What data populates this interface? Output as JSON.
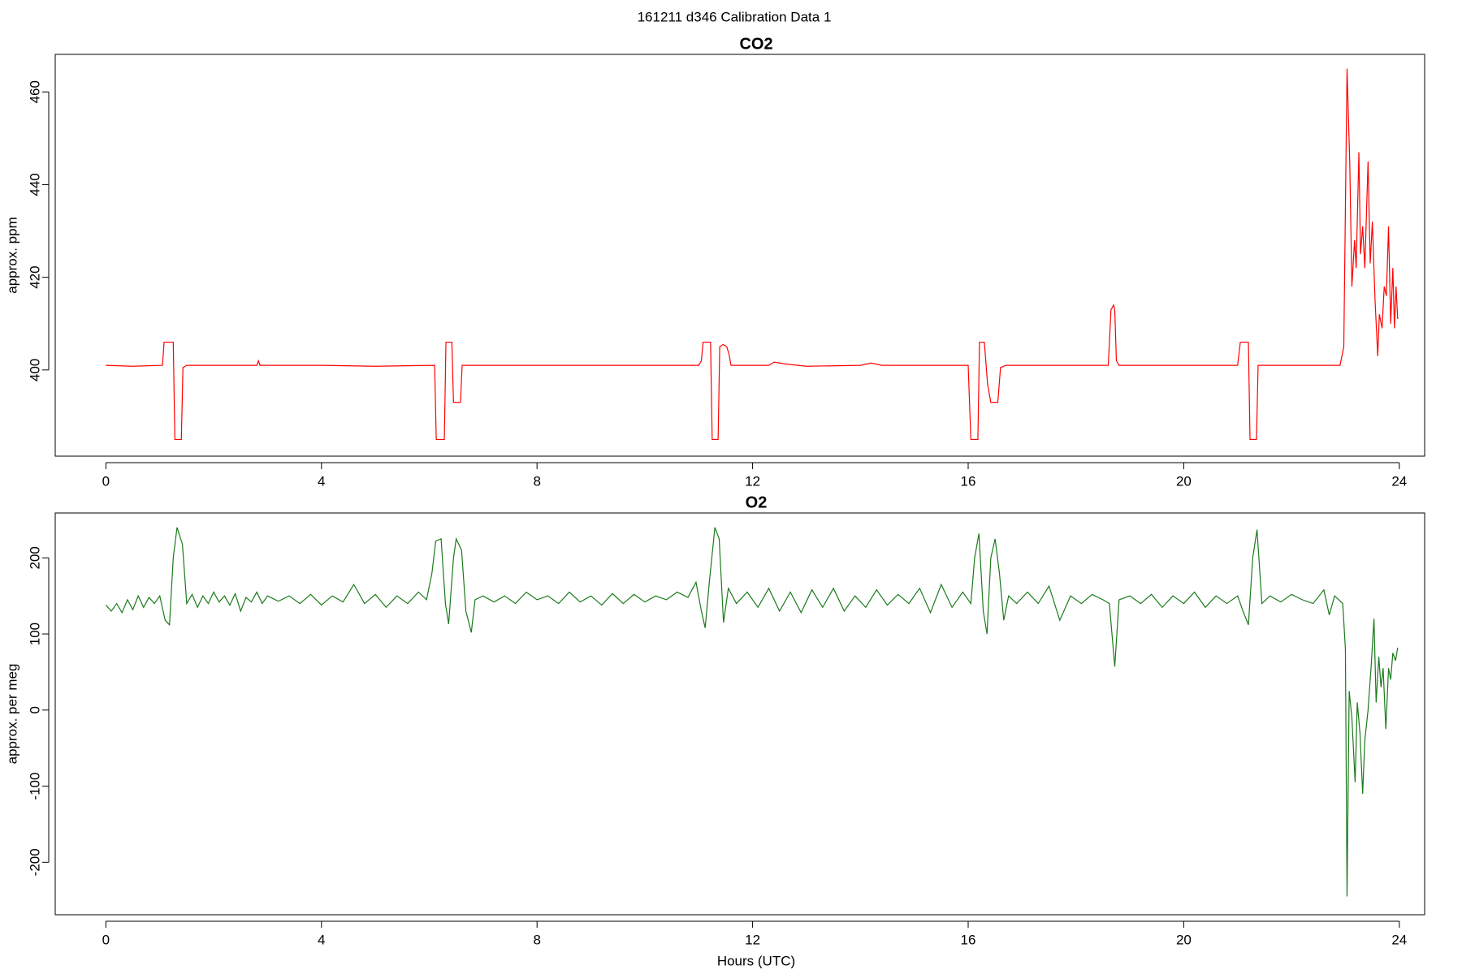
{
  "title": "161211   d346   Calibration Data 1",
  "chart_data": [
    {
      "type": "line",
      "title": "CO2",
      "ylabel": "approx. ppm",
      "color": "#ff0000",
      "x": [
        0.0,
        0.5,
        1.05,
        1.08,
        1.25,
        1.28,
        1.4,
        1.43,
        1.5,
        2.8,
        2.83,
        2.86,
        4,
        5,
        6.1,
        6.13,
        6.28,
        6.31,
        6.42,
        6.45,
        6.58,
        6.61,
        8,
        10,
        11.0,
        11.05,
        11.08,
        11.22,
        11.25,
        11.36,
        11.39,
        11.45,
        11.52,
        11.56,
        11.6,
        12.3,
        12.4,
        12.6,
        13,
        14,
        14.2,
        14.4,
        16.0,
        16.05,
        16.18,
        16.21,
        16.3,
        16.36,
        16.42,
        16.55,
        16.6,
        16.7,
        18.6,
        18.65,
        18.7,
        18.72,
        18.75,
        18.8,
        21.0,
        21.05,
        21.2,
        21.23,
        21.35,
        21.38,
        22.9,
        22.97,
        23.03,
        23.08,
        23.12,
        23.17,
        23.2,
        23.25,
        23.28,
        23.32,
        23.36,
        23.42,
        23.46,
        23.5,
        23.55,
        23.6,
        23.63,
        23.68,
        23.72,
        23.76,
        23.8,
        23.84,
        23.88,
        23.91,
        23.94,
        23.97
      ],
      "values": [
        401,
        400.8,
        401,
        406,
        406,
        385,
        385,
        400.5,
        401,
        401,
        402,
        401,
        401,
        400.8,
        401,
        385,
        385,
        406,
        406,
        393,
        393,
        401,
        401,
        401,
        401,
        402,
        406,
        406,
        385,
        385,
        405,
        405.5,
        405,
        403.5,
        401,
        401,
        401.7,
        401.3,
        400.8,
        401,
        401.5,
        401,
        401,
        385,
        385,
        406,
        406,
        397,
        393,
        393,
        400.5,
        401,
        401,
        413,
        414,
        413,
        402,
        401,
        401,
        406,
        406,
        385,
        385,
        401,
        401,
        405,
        465,
        445,
        418,
        428,
        422,
        447,
        425,
        431,
        422,
        445,
        423,
        432,
        415,
        403,
        412,
        409,
        418,
        416,
        431,
        410,
        422,
        409,
        418,
        411
      ],
      "xlim": [
        -0.94,
        24.47
      ],
      "ylim": [
        381.4,
        468.1
      ],
      "xticks": [
        0,
        4,
        8,
        12,
        16,
        20,
        24
      ],
      "yticks": [
        400,
        420,
        440,
        460
      ]
    },
    {
      "type": "line",
      "title": "O2",
      "ylabel": "approx. per meg",
      "xlabel": "Hours (UTC)",
      "color": "#1b7a1b",
      "x": [
        0,
        0.1,
        0.2,
        0.3,
        0.4,
        0.5,
        0.6,
        0.7,
        0.8,
        0.9,
        1.0,
        1.1,
        1.18,
        1.25,
        1.32,
        1.42,
        1.5,
        1.6,
        1.7,
        1.8,
        1.9,
        2.0,
        2.1,
        2.2,
        2.3,
        2.4,
        2.5,
        2.6,
        2.7,
        2.8,
        2.9,
        3.0,
        3.2,
        3.4,
        3.6,
        3.8,
        4.0,
        4.2,
        4.4,
        4.6,
        4.8,
        5.0,
        5.2,
        5.4,
        5.6,
        5.8,
        5.95,
        6.05,
        6.12,
        6.22,
        6.3,
        6.36,
        6.45,
        6.5,
        6.6,
        6.68,
        6.78,
        6.85,
        7.0,
        7.2,
        7.4,
        7.6,
        7.8,
        8.0,
        8.2,
        8.4,
        8.6,
        8.8,
        9.0,
        9.2,
        9.4,
        9.6,
        9.8,
        10.0,
        10.2,
        10.4,
        10.6,
        10.8,
        10.95,
        11.05,
        11.12,
        11.2,
        11.3,
        11.38,
        11.46,
        11.55,
        11.7,
        11.9,
        12.1,
        12.3,
        12.5,
        12.7,
        12.9,
        13.1,
        13.3,
        13.5,
        13.7,
        13.9,
        14.1,
        14.3,
        14.5,
        14.7,
        14.9,
        15.1,
        15.3,
        15.5,
        15.7,
        15.9,
        16.05,
        16.12,
        16.2,
        16.28,
        16.35,
        16.42,
        16.5,
        16.58,
        16.66,
        16.75,
        16.9,
        17.1,
        17.3,
        17.5,
        17.7,
        17.9,
        18.1,
        18.3,
        18.5,
        18.62,
        18.72,
        18.8,
        19.0,
        19.2,
        19.4,
        19.6,
        19.8,
        20.0,
        20.2,
        20.4,
        20.6,
        20.8,
        21.0,
        21.1,
        21.2,
        21.28,
        21.36,
        21.45,
        21.6,
        21.8,
        22.0,
        22.2,
        22.4,
        22.6,
        22.7,
        22.8,
        22.95,
        23.0,
        23.03,
        23.07,
        23.12,
        23.18,
        23.22,
        23.27,
        23.32,
        23.36,
        23.42,
        23.48,
        23.53,
        23.57,
        23.62,
        23.66,
        23.7,
        23.75,
        23.8,
        23.84,
        23.88,
        23.93,
        23.97
      ],
      "values": [
        138,
        130,
        140,
        128,
        145,
        132,
        150,
        135,
        148,
        140,
        150,
        118,
        112,
        200,
        240,
        218,
        140,
        152,
        135,
        150,
        140,
        155,
        142,
        150,
        138,
        153,
        130,
        148,
        142,
        155,
        140,
        150,
        143,
        150,
        140,
        152,
        138,
        150,
        142,
        165,
        140,
        152,
        135,
        150,
        140,
        155,
        145,
        180,
        222,
        225,
        140,
        113,
        200,
        225,
        210,
        130,
        102,
        145,
        150,
        142,
        150,
        140,
        155,
        145,
        150,
        140,
        155,
        142,
        150,
        138,
        153,
        140,
        152,
        142,
        150,
        145,
        155,
        148,
        168,
        130,
        108,
        170,
        240,
        225,
        115,
        160,
        140,
        155,
        135,
        160,
        130,
        155,
        128,
        158,
        135,
        160,
        130,
        150,
        135,
        158,
        138,
        152,
        140,
        160,
        128,
        165,
        135,
        155,
        140,
        200,
        232,
        130,
        100,
        200,
        225,
        180,
        118,
        150,
        140,
        155,
        140,
        163,
        118,
        150,
        140,
        152,
        145,
        140,
        57,
        145,
        150,
        140,
        152,
        135,
        150,
        140,
        155,
        135,
        150,
        140,
        150,
        130,
        112,
        200,
        237,
        140,
        150,
        142,
        152,
        145,
        140,
        158,
        125,
        150,
        140,
        80,
        -245,
        25,
        -10,
        -95,
        10,
        -30,
        -110,
        -40,
        0,
        60,
        120,
        10,
        70,
        30,
        55,
        -25,
        55,
        40,
        75,
        65,
        82
      ],
      "xlim": [
        -0.94,
        24.47
      ],
      "ylim": [
        -269,
        259
      ],
      "xticks": [
        0,
        4,
        8,
        12,
        16,
        20,
        24
      ],
      "yticks": [
        -200,
        -100,
        0,
        100,
        200
      ]
    }
  ]
}
